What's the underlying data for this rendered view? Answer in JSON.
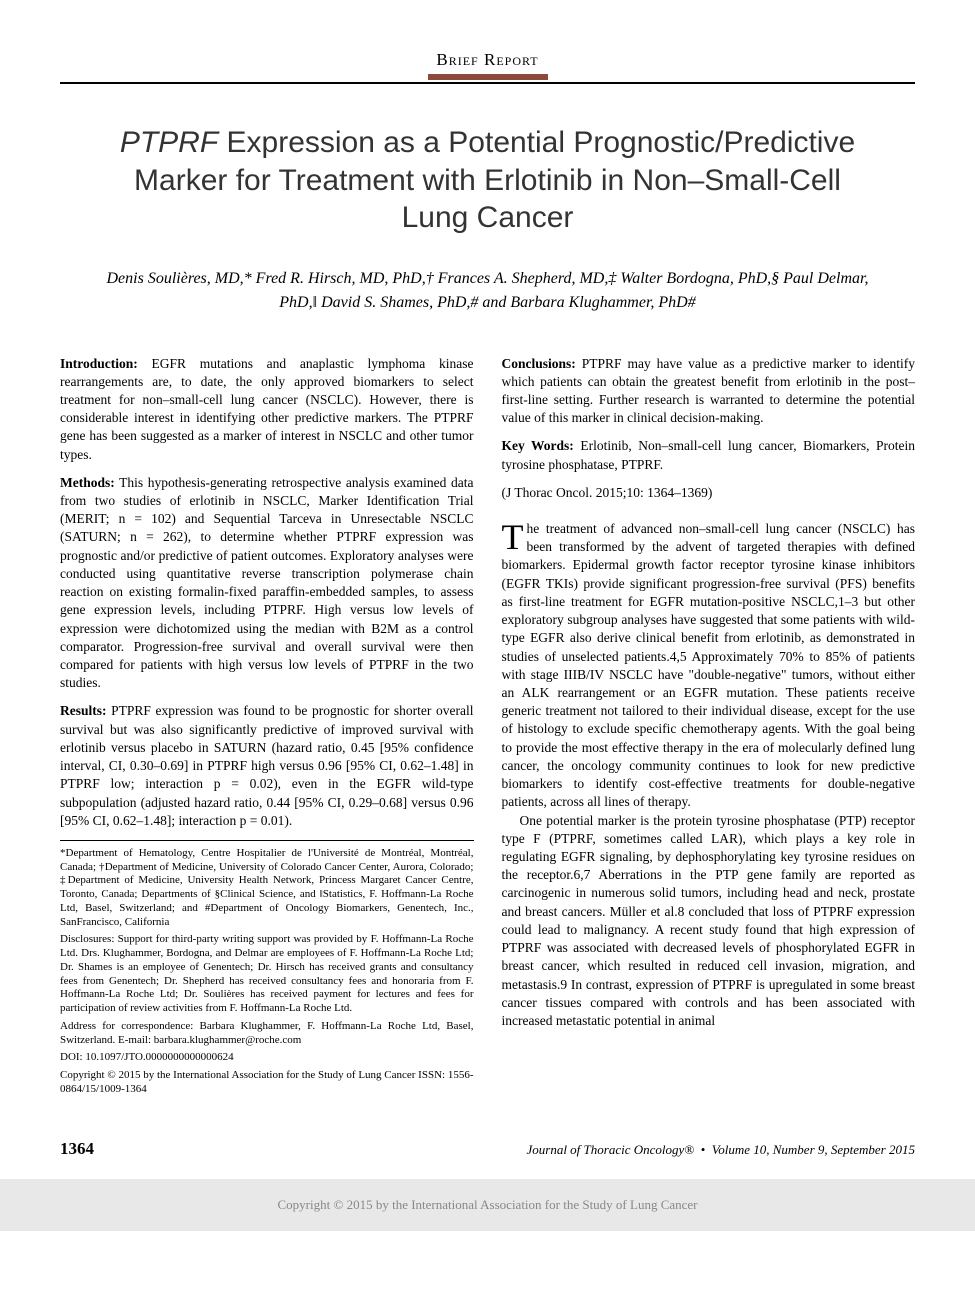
{
  "section_header": "Brief Report",
  "title_line1": "PTPRF",
  "title_rest": " Expression as a Potential Prognostic/Predictive Marker for Treatment with Erlotinib in Non–Small-Cell Lung Cancer",
  "authors": "Denis Soulières, MD,* Fred R. Hirsch, MD, PhD,† Frances A. Shepherd, MD,‡ Walter Bordogna, PhD,§ Paul Delmar, PhD,‖ David S. Shames, PhD,# and Barbara Klughammer, PhD#",
  "abstract": {
    "introduction_label": "Introduction:",
    "introduction": "EGFR mutations and anaplastic lymphoma kinase rearrangements are, to date, the only approved biomarkers to select treatment for non–small-cell lung cancer (NSCLC). However, there is considerable interest in identifying other predictive markers. The PTPRF gene has been suggested as a marker of interest in NSCLC and other tumor types.",
    "methods_label": "Methods:",
    "methods": "This hypothesis-generating retrospective analysis examined data from two studies of erlotinib in NSCLC, Marker Identification Trial (MERIT; n = 102) and Sequential Tarceva in Unresectable NSCLC (SATURN; n = 262), to determine whether PTPRF expression was prognostic and/or predictive of patient outcomes. Exploratory analyses were conducted using quantitative reverse transcription polymerase chain reaction on existing formalin-fixed paraffin-embedded samples, to assess gene expression levels, including PTPRF. High versus low levels of expression were dichotomized using the median with B2M as a control comparator. Progression-free survival and overall survival were then compared for patients with high versus low levels of PTPRF in the two studies.",
    "results_label": "Results:",
    "results": "PTPRF expression was found to be prognostic for shorter overall survival but was also significantly predictive of improved survival with erlotinib versus placebo in SATURN (hazard ratio, 0.45 [95% confidence interval, CI, 0.30–0.69] in PTPRF high versus 0.96 [95% CI, 0.62–1.48] in PTPRF low; interaction p = 0.02), even in the EGFR wild-type subpopulation (adjusted hazard ratio, 0.44 [95% CI, 0.29–0.68] versus 0.96 [95% CI, 0.62–1.48]; interaction p = 0.01).",
    "conclusions_label": "Conclusions:",
    "conclusions": "PTPRF may have value as a predictive marker to identify which patients can obtain the greatest benefit from erlotinib in the post–first-line setting. Further research is warranted to determine the potential value of this marker in clinical decision-making.",
    "keywords_label": "Key Words:",
    "keywords": "Erlotinib, Non–small-cell lung cancer, Biomarkers, Protein tyrosine phosphatase, PTPRF.",
    "citation": "(J Thorac Oncol. 2015;10: 1364–1369)"
  },
  "body": {
    "para1": "The treatment of advanced non–small-cell lung cancer (NSCLC) has been transformed by the advent of targeted therapies with defined biomarkers. Epidermal growth factor receptor tyrosine kinase inhibitors (EGFR TKIs) provide significant progression-free survival (PFS) benefits as first-line treatment for EGFR mutation-positive NSCLC,1–3 but other exploratory subgroup analyses have suggested that some patients with wild-type EGFR also derive clinical benefit from erlotinib, as demonstrated in studies of unselected patients.4,5 Approximately 70% to 85% of patients with stage IIIB/IV NSCLC have \"double-negative\" tumors, without either an ALK rearrangement or an EGFR mutation. These patients receive generic treatment not tailored to their individual disease, except for the use of histology to exclude specific chemotherapy agents. With the goal being to provide the most effective therapy in the era of molecularly defined lung cancer, the oncology community continues to look for new predictive biomarkers to identify cost-effective treatments for double-negative patients, across all lines of therapy.",
    "para2": "One potential marker is the protein tyrosine phosphatase (PTP) receptor type F (PTPRF, sometimes called LAR), which plays a key role in regulating EGFR signaling, by dephosphorylating key tyrosine residues on the receptor.6,7 Aberrations in the PTP gene family are reported as carcinogenic in numerous solid tumors, including head and neck, prostate and breast cancers. Müller et al.8 concluded that loss of PTPRF expression could lead to malignancy. A recent study found that high expression of PTPRF was associated with decreased levels of phosphorylated EGFR in breast cancer, which resulted in reduced cell invasion, migration, and metastasis.9 In contrast, expression of PTPRF is upregulated in some breast cancer tissues compared with controls and has been associated with increased metastatic potential in animal"
  },
  "footnotes": {
    "affiliations": "*Department of Hematology, Centre Hospitalier de l'Université de Montréal, Montréal, Canada; †Department of Medicine, University of Colorado Cancer Center, Aurora, Colorado; ‡Department of Medicine, University Health Network, Princess Margaret Cancer Centre, Toronto, Canada; Departments of §Clinical Science, and ‖Statistics, F. Hoffmann-La Roche Ltd, Basel, Switzerland; and #Department of Oncology Biomarkers, Genentech, Inc., SanFrancisco, California",
    "disclosures": "Disclosures: Support for third-party writing support was provided by F. Hoffmann-La Roche Ltd. Drs. Klughammer, Bordogna, and Delmar are employees of F. Hoffmann-La Roche Ltd; Dr. Shames is an employee of Genentech; Dr. Hirsch has received grants and consultancy fees from Genentech; Dr. Shepherd has received consultancy fees and honoraria from F. Hoffmann-La Roche Ltd; Dr. Soulières has received payment for lectures and fees for participation of review activities from F. Hoffmann-La Roche Ltd.",
    "correspondence": "Address for correspondence: Barbara Klughammer, F. Hoffmann-La Roche Ltd, Basel, Switzerland. E-mail: barbara.klughammer@roche.com",
    "doi": "DOI: 10.1097/JTO.0000000000000624",
    "copyright": "Copyright © 2015 by the International Association for the Study of Lung Cancer ISSN: 1556-0864/15/1009-1364"
  },
  "footer": {
    "page_num": "1364",
    "journal": "Journal of Thoracic Oncology®",
    "issue": "Volume 10, Number 9, September 2015"
  },
  "bottom_copyright": "Copyright © 2015 by the International Association for the Study of Lung Cancer"
}
